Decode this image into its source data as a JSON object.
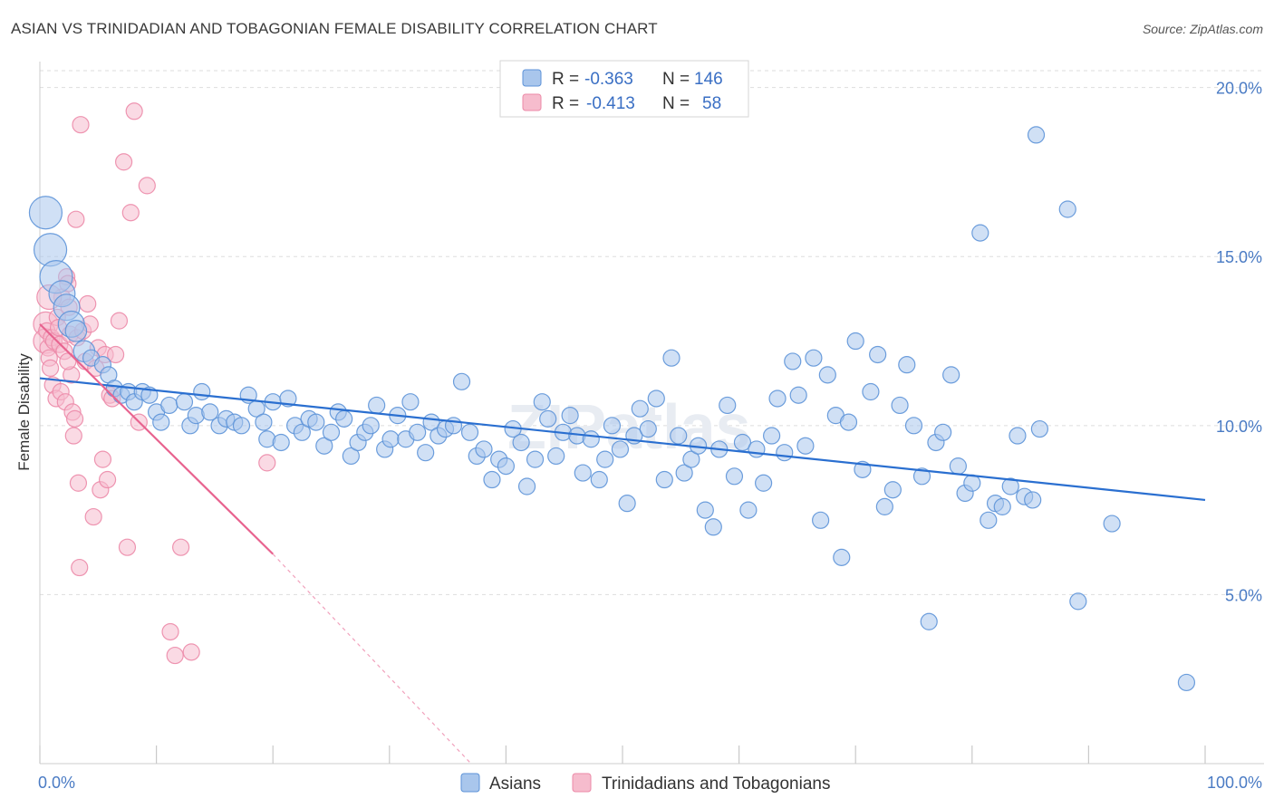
{
  "header": {
    "title": "ASIAN VS TRINIDADIAN AND TOBAGONIAN FEMALE DISABILITY CORRELATION CHART",
    "source": "Source: ZipAtlas.com"
  },
  "watermark": "ZIPatlas",
  "colors": {
    "asian_fill": "#a9c6ec",
    "asian_stroke": "#5d93d8",
    "asian_line": "#2a6fd0",
    "trini_fill": "#f6bccd",
    "trini_stroke": "#ec8aa8",
    "trini_line": "#e8638f",
    "axis_label": "#4a7bc4",
    "grid": "#dddddd"
  },
  "stats_legend": {
    "rows": [
      {
        "r_label": "R =",
        "r_value": "-0.363",
        "n_label": "N =",
        "n_value": "146"
      },
      {
        "r_label": "R =",
        "r_value": "-0.413",
        "n_label": "N =",
        "n_value": "58"
      }
    ]
  },
  "bottom_legend": {
    "items": [
      {
        "label": "Asians"
      },
      {
        "label": "Trinidadians and Tobagonians"
      }
    ]
  },
  "chart_data": {
    "type": "scatter",
    "title": "ASIAN VS TRINIDADIAN AND TOBAGONIAN FEMALE DISABILITY CORRELATION CHART",
    "xlabel": "",
    "ylabel": "Female Disability",
    "xlim": [
      0,
      100
    ],
    "ylim": [
      0,
      20.5
    ],
    "x_tick_labels": [
      "0.0%",
      "100.0%"
    ],
    "y_ticks": [
      5,
      10,
      15,
      20
    ],
    "y_tick_labels": [
      "5.0%",
      "10.0%",
      "15.0%",
      "20.0%"
    ],
    "grid": true,
    "legend_placement": "top-center",
    "series": [
      {
        "name": "Asians",
        "R": -0.363,
        "N": 146,
        "trend": {
          "x": [
            0,
            100
          ],
          "y": [
            11.4,
            7.8
          ]
        },
        "points": [
          [
            0.5,
            16.3,
            2
          ],
          [
            0.9,
            15.2,
            2
          ],
          [
            1.4,
            14.4,
            2
          ],
          [
            1.9,
            13.9,
            1.6
          ],
          [
            2.3,
            13.5,
            1.6
          ],
          [
            2.7,
            13.0,
            1.6
          ],
          [
            3.1,
            12.8,
            1.3
          ],
          [
            3.8,
            12.2,
            1.3
          ],
          [
            4.4,
            12.0,
            1
          ],
          [
            5.4,
            11.8,
            1
          ],
          [
            5.9,
            11.5,
            1
          ],
          [
            6.4,
            11.1,
            1
          ],
          [
            7.0,
            10.9,
            1
          ],
          [
            7.6,
            11.0,
            1
          ],
          [
            8.1,
            10.7,
            1
          ],
          [
            8.8,
            11.0,
            1
          ],
          [
            9.4,
            10.9,
            1
          ],
          [
            10.0,
            10.4,
            1
          ],
          [
            10.4,
            10.1,
            1
          ],
          [
            11.1,
            10.6,
            1
          ],
          [
            12.4,
            10.7,
            1
          ],
          [
            12.9,
            10.0,
            1
          ],
          [
            13.4,
            10.3,
            1
          ],
          [
            13.9,
            11.0,
            1
          ],
          [
            14.6,
            10.4,
            1
          ],
          [
            15.4,
            10.0,
            1
          ],
          [
            16.0,
            10.2,
            1
          ],
          [
            16.7,
            10.1,
            1
          ],
          [
            17.3,
            10.0,
            1
          ],
          [
            17.9,
            10.9,
            1
          ],
          [
            18.6,
            10.5,
            1
          ],
          [
            19.2,
            10.1,
            1
          ],
          [
            19.5,
            9.6,
            1
          ],
          [
            20.0,
            10.7,
            1
          ],
          [
            20.7,
            9.5,
            1
          ],
          [
            21.3,
            10.8,
            1
          ],
          [
            21.9,
            10.0,
            1
          ],
          [
            22.5,
            9.8,
            1
          ],
          [
            23.1,
            10.2,
            1
          ],
          [
            23.7,
            10.1,
            1
          ],
          [
            24.4,
            9.4,
            1
          ],
          [
            25.0,
            9.8,
            1
          ],
          [
            25.6,
            10.4,
            1
          ],
          [
            26.1,
            10.2,
            1
          ],
          [
            26.7,
            9.1,
            1
          ],
          [
            27.3,
            9.5,
            1
          ],
          [
            27.9,
            9.8,
            1
          ],
          [
            28.4,
            10.0,
            1
          ],
          [
            28.9,
            10.6,
            1
          ],
          [
            29.6,
            9.3,
            1
          ],
          [
            30.1,
            9.6,
            1
          ],
          [
            30.7,
            10.3,
            1
          ],
          [
            31.4,
            9.6,
            1
          ],
          [
            31.8,
            10.7,
            1
          ],
          [
            32.4,
            9.8,
            1
          ],
          [
            33.1,
            9.2,
            1
          ],
          [
            33.6,
            10.1,
            1
          ],
          [
            34.2,
            9.7,
            1
          ],
          [
            34.8,
            9.9,
            1
          ],
          [
            35.5,
            10.0,
            1
          ],
          [
            36.2,
            11.3,
            1
          ],
          [
            36.9,
            9.8,
            1
          ],
          [
            37.5,
            9.1,
            1
          ],
          [
            38.1,
            9.3,
            1
          ],
          [
            38.8,
            8.4,
            1
          ],
          [
            39.4,
            9.0,
            1
          ],
          [
            40.0,
            8.8,
            1
          ],
          [
            40.6,
            9.9,
            1
          ],
          [
            41.3,
            9.5,
            1
          ],
          [
            41.8,
            8.2,
            1
          ],
          [
            42.5,
            9.0,
            1
          ],
          [
            43.1,
            10.7,
            1
          ],
          [
            43.6,
            10.2,
            1
          ],
          [
            44.3,
            9.1,
            1
          ],
          [
            44.9,
            9.8,
            1
          ],
          [
            45.5,
            10.3,
            1
          ],
          [
            46.1,
            9.7,
            1
          ],
          [
            46.6,
            8.6,
            1
          ],
          [
            47.3,
            9.6,
            1
          ],
          [
            48.0,
            8.4,
            1
          ],
          [
            48.5,
            9.0,
            1
          ],
          [
            49.1,
            10.0,
            1
          ],
          [
            49.8,
            9.3,
            1
          ],
          [
            50.4,
            7.7,
            1
          ],
          [
            51.0,
            9.7,
            1
          ],
          [
            51.5,
            10.5,
            1
          ],
          [
            52.2,
            9.9,
            1
          ],
          [
            52.9,
            10.8,
            1
          ],
          [
            53.6,
            8.4,
            1
          ],
          [
            54.2,
            12.0,
            1
          ],
          [
            54.8,
            9.7,
            1
          ],
          [
            55.3,
            8.6,
            1
          ],
          [
            55.9,
            9.0,
            1
          ],
          [
            56.5,
            9.4,
            1
          ],
          [
            57.1,
            7.5,
            1
          ],
          [
            57.8,
            7.0,
            1
          ],
          [
            58.3,
            9.3,
            1
          ],
          [
            59.0,
            10.6,
            1
          ],
          [
            59.6,
            8.5,
            1
          ],
          [
            60.3,
            9.5,
            1
          ],
          [
            60.8,
            7.5,
            1
          ],
          [
            61.5,
            9.3,
            1
          ],
          [
            62.1,
            8.3,
            1
          ],
          [
            62.8,
            9.7,
            1
          ],
          [
            63.3,
            10.8,
            1
          ],
          [
            63.9,
            9.2,
            1
          ],
          [
            64.6,
            11.9,
            1
          ],
          [
            65.1,
            10.9,
            1
          ],
          [
            65.7,
            9.4,
            1
          ],
          [
            66.4,
            12.0,
            1
          ],
          [
            67.0,
            7.2,
            1
          ],
          [
            67.6,
            11.5,
            1
          ],
          [
            68.3,
            10.3,
            1
          ],
          [
            68.8,
            6.1,
            1
          ],
          [
            69.4,
            10.1,
            1
          ],
          [
            70.0,
            12.5,
            1
          ],
          [
            70.6,
            8.7,
            1
          ],
          [
            71.3,
            11.0,
            1
          ],
          [
            71.9,
            12.1,
            1
          ],
          [
            72.5,
            7.6,
            1
          ],
          [
            73.2,
            8.1,
            1
          ],
          [
            73.8,
            10.6,
            1
          ],
          [
            74.4,
            11.8,
            1
          ],
          [
            75.0,
            10.0,
            1
          ],
          [
            75.7,
            8.5,
            1
          ],
          [
            76.3,
            4.2,
            1
          ],
          [
            76.9,
            9.5,
            1
          ],
          [
            77.5,
            9.8,
            1
          ],
          [
            78.2,
            11.5,
            1
          ],
          [
            78.8,
            8.8,
            1
          ],
          [
            79.4,
            8.0,
            1
          ],
          [
            80.0,
            8.3,
            1
          ],
          [
            80.7,
            15.7,
            1
          ],
          [
            81.4,
            7.2,
            1
          ],
          [
            82.0,
            7.7,
            1
          ],
          [
            82.6,
            7.6,
            1
          ],
          [
            83.3,
            8.2,
            1
          ],
          [
            83.9,
            9.7,
            1
          ],
          [
            84.5,
            7.9,
            1
          ],
          [
            85.2,
            7.8,
            1
          ],
          [
            85.8,
            9.9,
            1
          ],
          [
            88.2,
            16.4,
            1
          ],
          [
            89.1,
            4.8,
            1
          ],
          [
            92.0,
            7.1,
            1
          ],
          [
            98.4,
            2.4,
            1
          ],
          [
            85.5,
            18.6,
            1
          ]
        ]
      },
      {
        "name": "Trinidadians and Tobagonians",
        "R": -0.413,
        "N": 58,
        "trend": {
          "x": [
            0,
            20
          ],
          "y": [
            13.0,
            6.2
          ],
          "dashed_extension": {
            "x": [
              20,
              37
            ],
            "y": [
              6.2,
              0
            ]
          }
        },
        "points": [
          [
            0.5,
            13.0,
            1.5
          ],
          [
            0.5,
            12.5,
            1.5
          ],
          [
            0.6,
            12.8,
            1
          ],
          [
            0.7,
            12.3,
            1
          ],
          [
            0.8,
            12.0,
            1
          ],
          [
            0.9,
            11.7,
            1
          ],
          [
            1.0,
            12.6,
            1
          ],
          [
            1.1,
            11.2,
            1
          ],
          [
            1.2,
            12.5,
            1
          ],
          [
            1.4,
            10.8,
            1
          ],
          [
            1.5,
            13.2,
            1
          ],
          [
            1.6,
            12.9,
            1
          ],
          [
            1.7,
            12.4,
            1
          ],
          [
            1.8,
            11.0,
            1
          ],
          [
            1.9,
            13.8,
            1
          ],
          [
            2.1,
            12.2,
            1
          ],
          [
            2.2,
            10.7,
            1
          ],
          [
            2.3,
            14.4,
            1
          ],
          [
            2.4,
            14.2,
            1
          ],
          [
            2.5,
            13.5,
            1
          ],
          [
            2.6,
            12.7,
            1
          ],
          [
            2.7,
            11.5,
            1
          ],
          [
            2.8,
            10.4,
            1
          ],
          [
            2.9,
            9.7,
            1
          ],
          [
            3.0,
            10.2,
            1
          ],
          [
            3.1,
            16.1,
            1
          ],
          [
            3.2,
            12.6,
            1
          ],
          [
            3.3,
            8.3,
            1
          ],
          [
            3.4,
            5.8,
            1
          ],
          [
            3.5,
            18.9,
            1
          ],
          [
            3.7,
            12.8,
            1
          ],
          [
            3.9,
            11.9,
            1
          ],
          [
            4.1,
            13.6,
            1
          ],
          [
            4.3,
            13.0,
            1
          ],
          [
            4.6,
            7.3,
            1
          ],
          [
            4.8,
            11.7,
            1
          ],
          [
            5.0,
            12.3,
            1
          ],
          [
            5.2,
            8.1,
            1
          ],
          [
            5.4,
            9.0,
            1
          ],
          [
            5.6,
            12.1,
            1
          ],
          [
            5.8,
            8.4,
            1
          ],
          [
            6.0,
            10.9,
            1
          ],
          [
            6.2,
            10.8,
            1
          ],
          [
            6.5,
            12.1,
            1
          ],
          [
            6.8,
            13.1,
            1
          ],
          [
            7.2,
            17.8,
            1
          ],
          [
            7.5,
            6.4,
            1
          ],
          [
            7.8,
            16.3,
            1
          ],
          [
            8.1,
            19.3,
            1
          ],
          [
            8.5,
            10.1,
            1
          ],
          [
            9.2,
            17.1,
            1
          ],
          [
            11.2,
            3.9,
            1
          ],
          [
            11.6,
            3.2,
            1
          ],
          [
            12.1,
            6.4,
            1
          ],
          [
            13.0,
            3.3,
            1
          ],
          [
            19.5,
            8.9,
            1
          ],
          [
            0.8,
            13.8,
            1.5
          ],
          [
            2.4,
            11.9,
            1
          ]
        ]
      }
    ]
  }
}
